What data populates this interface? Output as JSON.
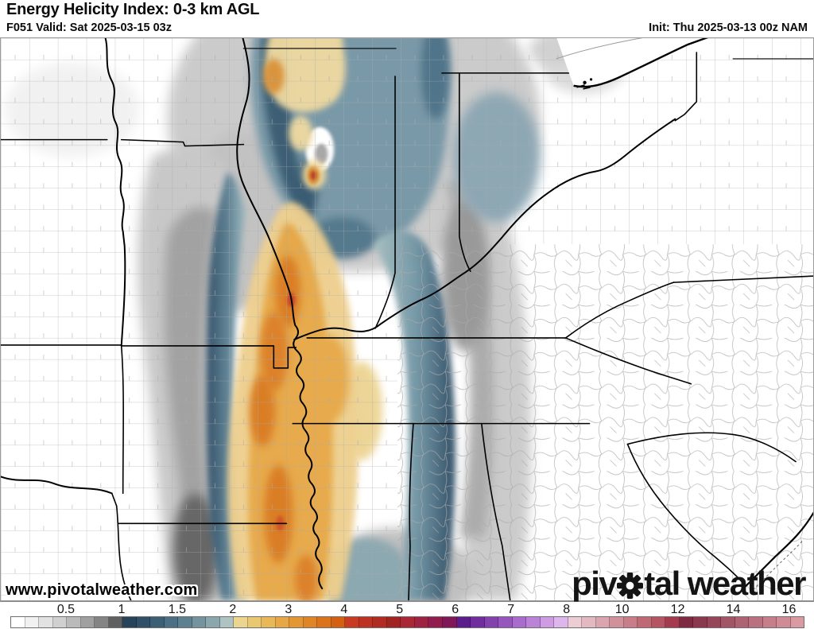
{
  "header": {
    "title": "Energy Helicity Index: 0-3 km AGL",
    "valid_line": "F051 Valid: Sat 2025-03-15 03z",
    "init_line": "Init: Thu 2025-03-13 00z NAM"
  },
  "map": {
    "watermark": "www.pivotalweather.com",
    "logo": {
      "text_piv": "piv",
      "text_tal": "tal",
      "text_weather": "weather"
    }
  },
  "colorbar": {
    "ticks": [
      "0.5",
      "1",
      "1.5",
      "2",
      "3",
      "4",
      "5",
      "6",
      "7",
      "8",
      "10",
      "12",
      "14",
      "16"
    ],
    "segment_colors": [
      "#ffffff",
      "#f1f1f1",
      "#e2e2e2",
      "#d0d0d0",
      "#bababa",
      "#a0a0a0",
      "#848484",
      "#606060",
      "#27435a",
      "#2f5068",
      "#3b6076",
      "#4b7084",
      "#5d8191",
      "#73939e",
      "#8ca7ac",
      "#aec3c2",
      "#ecd68f",
      "#eac773",
      "#e8b758",
      "#e6a744",
      "#e39733",
      "#df8527",
      "#da731c",
      "#d35f11",
      "#c93a23",
      "#bd3222",
      "#b02b21",
      "#a22420",
      "#aa2736",
      "#9e2242",
      "#901d4e",
      "#801858",
      "#5c1d8c",
      "#6f2d9e",
      "#8341ae",
      "#9756be",
      "#a96bcc",
      "#bb83d8",
      "#cd9ce2",
      "#dfb6ec",
      "#eccdd4",
      "#e3b9c1",
      "#daa5ae",
      "#d1919b",
      "#c87d88",
      "#bf6975",
      "#b65562",
      "#a33a4d",
      "#7f2a42",
      "#8b384e",
      "#97465a",
      "#a35466",
      "#af6272",
      "#ba707e",
      "#c57e8a",
      "#cf8c96",
      "#d99aa2"
    ]
  },
  "colors": {
    "county_line": "#adadad",
    "state_line": "#000000",
    "shade_gray": "#9e9e9e",
    "shade_blue": "#7596a6",
    "shade_navy": "#26455e",
    "shade_yellow": "#eed795",
    "shade_orange": "#e6a744",
    "shade_deep_orange": "#d9791e",
    "shade_red": "#c43b20"
  }
}
